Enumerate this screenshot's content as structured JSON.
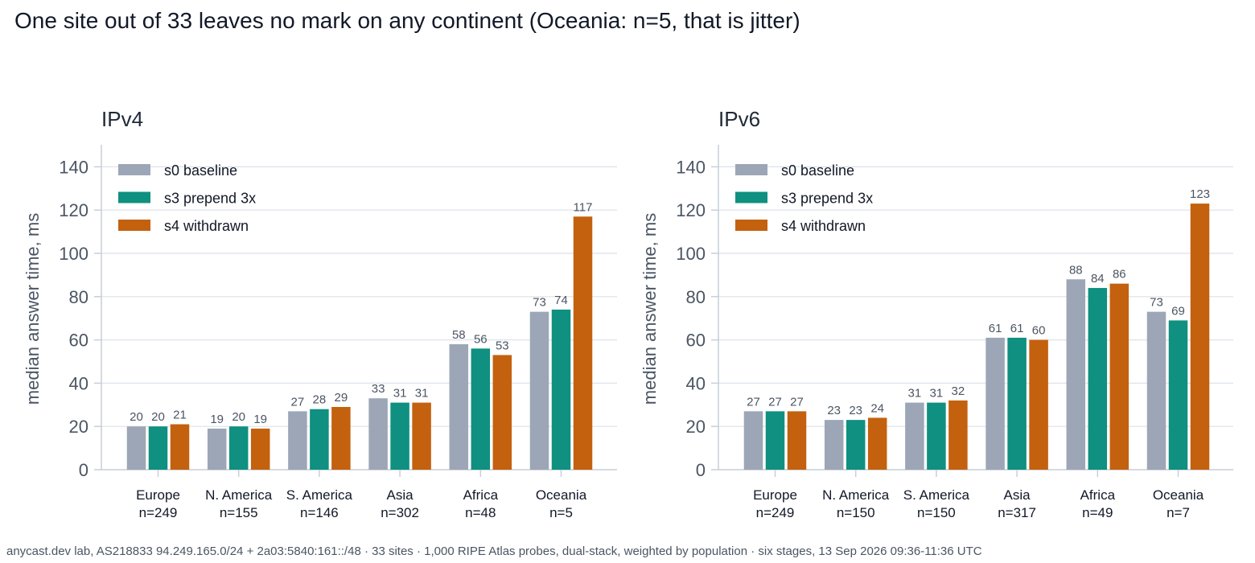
{
  "title": "One site out of 33 leaves no mark on any continent (Oceania: n=5, that is jitter)",
  "footer": "anycast.dev lab, AS218833 94.249.165.0/24 + 2a03:5840:161::/48 · 33 sites · 1,000 RIPE Atlas probes, dual-stack, weighted by population · six stages, 13 Sep 2026 09:36-11:36 UTC",
  "colors": {
    "s0 baseline": "#9ca6b6",
    "s3 prepend 3x": "#0f9080",
    "s4 withdrawn": "#c3610f"
  },
  "chart_data": [
    {
      "type": "bar",
      "title": "IPv4",
      "ylabel": "median answer time, ms",
      "ylim": [
        0,
        150
      ],
      "yticks": [
        0,
        20,
        40,
        60,
        80,
        100,
        120,
        140
      ],
      "grid": true,
      "legend": "top-left",
      "categories": [
        "Europe",
        "N. America",
        "S. America",
        "Asia",
        "Africa",
        "Oceania"
      ],
      "category_n": [
        "n=249",
        "n=155",
        "n=146",
        "n=302",
        "n=48",
        "n=5"
      ],
      "series": [
        {
          "name": "s0 baseline",
          "values": [
            20,
            19,
            27,
            33,
            58,
            73
          ]
        },
        {
          "name": "s3 prepend 3x",
          "values": [
            20,
            20,
            28,
            31,
            56,
            74
          ]
        },
        {
          "name": "s4 withdrawn",
          "values": [
            21,
            19,
            29,
            31,
            53,
            117
          ]
        }
      ]
    },
    {
      "type": "bar",
      "title": "IPv6",
      "ylabel": "median answer time, ms",
      "ylim": [
        0,
        150
      ],
      "yticks": [
        0,
        20,
        40,
        60,
        80,
        100,
        120,
        140
      ],
      "grid": true,
      "legend": "top-left",
      "categories": [
        "Europe",
        "N. America",
        "S. America",
        "Asia",
        "Africa",
        "Oceania"
      ],
      "category_n": [
        "n=249",
        "n=150",
        "n=150",
        "n=317",
        "n=49",
        "n=7"
      ],
      "series": [
        {
          "name": "s0 baseline",
          "values": [
            27,
            23,
            31,
            61,
            88,
            73
          ]
        },
        {
          "name": "s3 prepend 3x",
          "values": [
            27,
            23,
            31,
            61,
            84,
            69
          ]
        },
        {
          "name": "s4 withdrawn",
          "values": [
            27,
            24,
            32,
            60,
            86,
            123
          ]
        }
      ]
    }
  ]
}
